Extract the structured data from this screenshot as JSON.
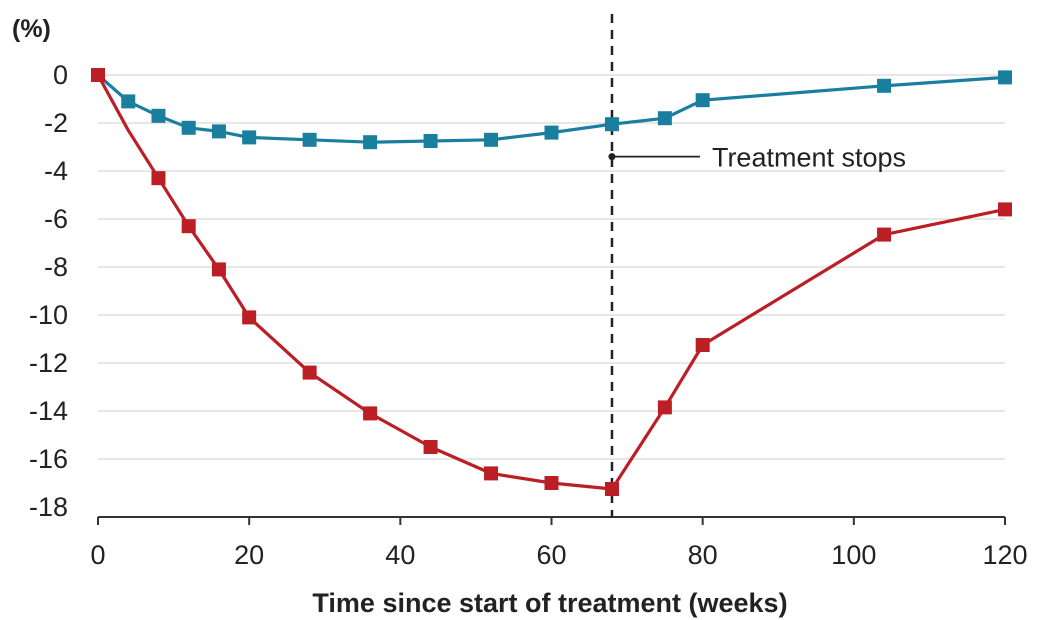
{
  "chart_data": {
    "type": "line",
    "title": "",
    "xlabel": "Time since start of treatment (weeks)",
    "ylabel": "(%)",
    "xlim": [
      0,
      120
    ],
    "ylim": [
      -18,
      0
    ],
    "x_ticks": [
      0,
      20,
      40,
      60,
      80,
      100,
      120
    ],
    "y_ticks": [
      0,
      -2,
      -4,
      -6,
      -8,
      -10,
      -12,
      -14,
      -16,
      -18
    ],
    "y_tick_labels": [
      "0",
      "-2",
      "-4",
      "-6",
      "-8",
      "-10",
      "-12",
      "-14",
      "-16",
      "-18"
    ],
    "x_tick_labels": [
      "0",
      "20",
      "40",
      "60",
      "80",
      "100",
      "120"
    ],
    "grid": "horizontal",
    "series": [
      {
        "color": "#1a7f9f",
        "points": [
          [
            0,
            0
          ],
          [
            4,
            -1.1
          ],
          [
            8,
            -1.7
          ],
          [
            12,
            -2.2
          ],
          [
            16,
            -2.35
          ],
          [
            20,
            -2.6
          ],
          [
            28,
            -2.7
          ],
          [
            36,
            -2.8
          ],
          [
            44,
            -2.75
          ],
          [
            52,
            -2.7
          ],
          [
            60,
            -2.4
          ],
          [
            68,
            -2.05
          ],
          [
            75,
            -1.8
          ],
          [
            80,
            -1.05
          ],
          [
            104,
            -0.45
          ],
          [
            120,
            -0.1
          ]
        ]
      },
      {
        "color": "#bb1e24",
        "points": [
          [
            0,
            0
          ],
          [
            8,
            -4.3
          ],
          [
            12,
            -6.3
          ],
          [
            16,
            -8.1
          ],
          [
            20,
            -10.1
          ],
          [
            28,
            -12.4
          ],
          [
            36,
            -14.1
          ],
          [
            44,
            -15.5
          ],
          [
            52,
            -16.6
          ],
          [
            60,
            -17.0
          ],
          [
            68,
            -17.25
          ],
          [
            75,
            -13.85
          ],
          [
            80,
            -11.25
          ],
          [
            104,
            -6.65
          ],
          [
            120,
            -5.6
          ]
        ],
        "unmarked_points": [
          [
            4,
            -2.3
          ]
        ]
      }
    ],
    "annotations": [
      {
        "text": "Treatment stops",
        "x": 68,
        "y": -3.4,
        "line": "vertical dashed at x=68"
      }
    ]
  }
}
